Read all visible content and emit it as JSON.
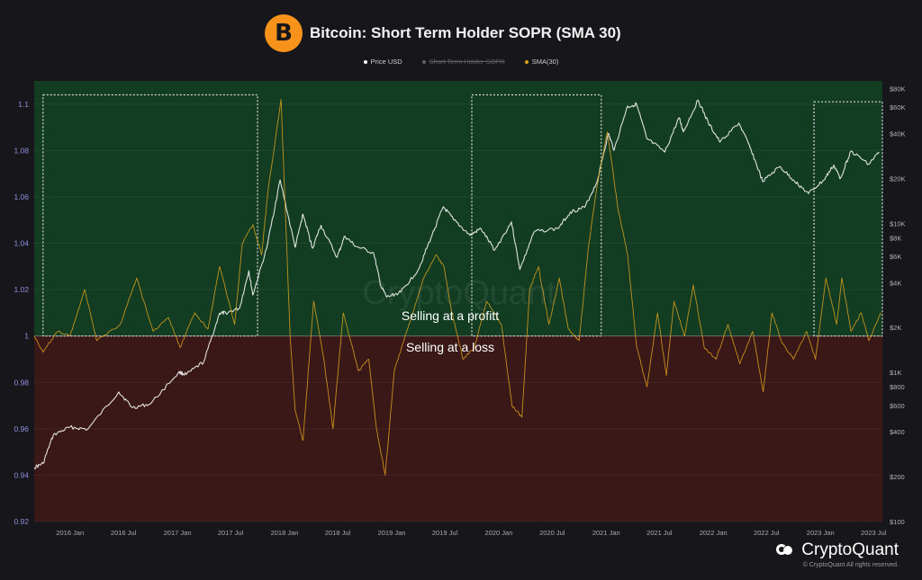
{
  "header": {
    "title": "Bitcoin: Short Term Holder SOPR (SMA 30)",
    "logo_symbol": "B",
    "logo_color": "#f7931a"
  },
  "legend": [
    {
      "label": "Price USD",
      "color": "#ffffff",
      "enabled": true
    },
    {
      "label": "Short Term Holder SOPR",
      "color": "#7d7d84",
      "enabled": false
    },
    {
      "label": "SMA(30)",
      "color": "#e0a21c",
      "enabled": true
    }
  ],
  "watermark": "CryptoQuant",
  "brand": {
    "name": "CryptoQuant",
    "copyright": "© CryptoQuant All rights reserved."
  },
  "colors": {
    "profit_zone": "#123d23",
    "loss_zone": "#3a1818",
    "price_line": "#f0f0f0",
    "sma_line": "#e0a21c",
    "highlight_box": "#d9d9d9",
    "left_axis_text": "#8f8fe0",
    "right_axis_text": "#b5b5b5"
  },
  "chart_data": {
    "type": "line",
    "x_range": [
      "2015-09-01",
      "2023-07-31"
    ],
    "x_ticks": [
      "2016 Jan",
      "2016 Jul",
      "2017 Jan",
      "2017 Jul",
      "2018 Jan",
      "2018 Jul",
      "2019 Jan",
      "2019 Jul",
      "2020 Jan",
      "2020 Jul",
      "2021 Jan",
      "2021 Jul",
      "2022 Jan",
      "2022 Jul",
      "2023 Jan",
      "2023 Jul"
    ],
    "y_left": {
      "ylim": [
        0.92,
        1.11
      ],
      "ticks": [
        0.92,
        0.94,
        0.96,
        0.98,
        1,
        1.02,
        1.04,
        1.06,
        1.08,
        1.1
      ],
      "tick_labels": [
        "0.92",
        "0.94",
        "0.96",
        "0.98",
        "1",
        "1.02",
        "1.04",
        "1.06",
        "1.08",
        "1.1"
      ]
    },
    "y_right": {
      "scale": "log",
      "ylim": [
        100,
        90000
      ],
      "ticks": [
        100,
        200,
        400,
        600,
        800,
        1000,
        2000,
        4000,
        6000,
        8000,
        10000,
        20000,
        40000,
        60000,
        80000
      ],
      "tick_labels": [
        "$100",
        "$200",
        "$400",
        "$600",
        "$800",
        "$1K",
        "$2K",
        "$4K",
        "$6K",
        "$8K",
        "$10K",
        "$20K",
        "$40K",
        "$60K",
        "$80K"
      ]
    },
    "threshold": 1,
    "annotations": {
      "above": "Selling at a profitt",
      "below": "Selling at a loss"
    },
    "highlight_boxes": [
      {
        "x0": "2015-10-01",
        "x1": "2017-10-01",
        "y_top": 1.104
      },
      {
        "x0": "2019-10-01",
        "x1": "2020-12-15",
        "y_top": 1.104
      },
      {
        "x0": "2022-12-10",
        "x1": "2023-07-31",
        "y_top": 1.101
      }
    ],
    "series": [
      {
        "name": "Price USD",
        "axis": "right",
        "x": [
          "2015-09-01",
          "2015-10-01",
          "2015-11-05",
          "2016-01-01",
          "2016-03-01",
          "2016-06-15",
          "2016-08-01",
          "2016-10-01",
          "2017-01-05",
          "2017-02-01",
          "2017-04-01",
          "2017-05-25",
          "2017-06-15",
          "2017-08-01",
          "2017-09-01",
          "2017-09-15",
          "2017-11-01",
          "2017-12-17",
          "2018-02-06",
          "2018-03-05",
          "2018-04-06",
          "2018-05-05",
          "2018-06-29",
          "2018-07-25",
          "2018-09-01",
          "2018-11-01",
          "2018-11-25",
          "2018-12-15",
          "2019-02-01",
          "2019-04-02",
          "2019-05-15",
          "2019-06-26",
          "2019-08-01",
          "2019-09-25",
          "2019-11-01",
          "2019-12-18",
          "2020-02-13",
          "2020-03-13",
          "2020-05-01",
          "2020-07-20",
          "2020-09-01",
          "2020-10-20",
          "2020-12-01",
          "2021-01-08",
          "2021-01-28",
          "2021-03-13",
          "2021-04-14",
          "2021-05-19",
          "2021-07-20",
          "2021-09-06",
          "2021-09-21",
          "2021-11-10",
          "2021-12-15",
          "2022-01-24",
          "2022-03-29",
          "2022-05-10",
          "2022-06-18",
          "2022-08-15",
          "2022-10-01",
          "2022-11-21",
          "2023-01-13",
          "2023-02-15",
          "2023-03-10",
          "2023-04-14",
          "2023-06-15",
          "2023-07-20"
        ],
        "y": [
          230,
          245,
          380,
          430,
          415,
          740,
          580,
          615,
          1000,
          970,
          1180,
          2500,
          2500,
          2700,
          4800,
          3300,
          6800,
          19500,
          6900,
          11500,
          6800,
          9700,
          5900,
          8200,
          7000,
          6300,
          3800,
          3200,
          3450,
          4900,
          8000,
          12900,
          10500,
          8300,
          9200,
          6600,
          10200,
          4900,
          8800,
          9200,
          11900,
          12800,
          19000,
          40000,
          31000,
          60000,
          63000,
          37000,
          30000,
          51000,
          41000,
          67000,
          47000,
          35000,
          47000,
          31000,
          19000,
          24000,
          19500,
          15800,
          19500,
          24500,
          20000,
          30400,
          25000,
          30000
        ]
      },
      {
        "name": "SMA(30)",
        "axis": "left",
        "x": [
          "2015-09-01",
          "2015-10-01",
          "2015-11-20",
          "2016-01-01",
          "2016-02-20",
          "2016-04-01",
          "2016-06-20",
          "2016-08-15",
          "2016-10-10",
          "2016-12-01",
          "2017-01-10",
          "2017-03-01",
          "2017-04-15",
          "2017-05-25",
          "2017-07-15",
          "2017-08-10",
          "2017-09-15",
          "2017-10-15",
          "2017-11-05",
          "2017-12-20",
          "2018-01-20",
          "2018-02-06",
          "2018-03-05",
          "2018-04-10",
          "2018-05-15",
          "2018-06-15",
          "2018-07-20",
          "2018-09-10",
          "2018-10-15",
          "2018-11-10",
          "2018-12-10",
          "2019-01-10",
          "2019-03-01",
          "2019-04-20",
          "2019-06-01",
          "2019-06-28",
          "2019-07-25",
          "2019-09-01",
          "2019-10-10",
          "2019-11-20",
          "2020-01-10",
          "2020-02-15",
          "2020-03-20",
          "2020-04-15",
          "2020-05-15",
          "2020-06-20",
          "2020-07-25",
          "2020-08-25",
          "2020-10-01",
          "2020-11-01",
          "2020-12-01",
          "2021-01-05",
          "2021-02-10",
          "2021-03-15",
          "2021-04-15",
          "2021-05-20",
          "2021-06-25",
          "2021-07-25",
          "2021-08-20",
          "2021-09-25",
          "2021-10-25",
          "2021-12-01",
          "2022-01-10",
          "2022-02-20",
          "2022-04-01",
          "2022-05-15",
          "2022-06-20",
          "2022-07-20",
          "2022-08-20",
          "2022-10-01",
          "2022-11-15",
          "2022-12-15",
          "2023-01-20",
          "2023-02-25",
          "2023-03-15",
          "2023-04-15",
          "2023-05-20",
          "2023-06-15",
          "2023-07-25"
        ],
        "y": [
          1.0,
          0.993,
          1.002,
          1.0,
          1.02,
          0.998,
          1.005,
          1.025,
          1.002,
          1.008,
          0.995,
          1.01,
          1.003,
          1.03,
          1.005,
          1.04,
          1.048,
          1.035,
          1.062,
          1.102,
          1.0,
          0.968,
          0.955,
          1.015,
          0.99,
          0.96,
          1.01,
          0.985,
          0.99,
          0.96,
          0.94,
          0.985,
          1.005,
          1.025,
          1.035,
          1.03,
          1.01,
          0.99,
          0.995,
          1.015,
          1.005,
          0.97,
          0.965,
          1.02,
          1.03,
          1.005,
          1.025,
          1.003,
          0.998,
          1.038,
          1.065,
          1.088,
          1.055,
          1.035,
          0.995,
          0.978,
          1.01,
          0.983,
          1.015,
          1.0,
          1.022,
          0.995,
          0.99,
          1.005,
          0.988,
          1.002,
          0.976,
          1.01,
          0.998,
          0.99,
          1.002,
          0.99,
          1.025,
          1.005,
          1.025,
          1.002,
          1.01,
          0.998,
          1.01
        ]
      }
    ]
  }
}
